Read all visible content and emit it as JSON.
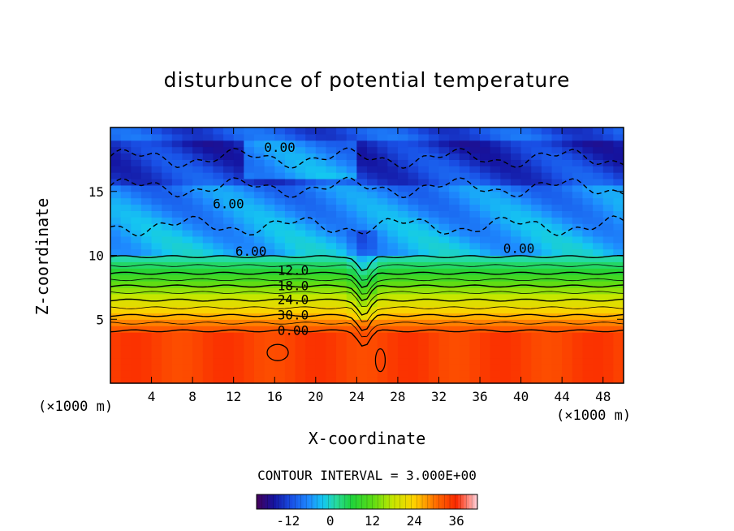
{
  "chart_data": {
    "type": "contour",
    "title": "disturbunce of potential temperature",
    "xlabel": "X-coordinate",
    "ylabel": "Z-coordinate",
    "x_unit": "(×1000 m)",
    "y_unit": "(×1000 m)",
    "xlim": [
      0,
      50
    ],
    "ylim": [
      0,
      20
    ],
    "x_ticks": [
      4,
      8,
      12,
      16,
      20,
      24,
      28,
      32,
      36,
      40,
      44,
      48
    ],
    "y_ticks": [
      5,
      10,
      15
    ],
    "contour_interval_text": "CONTOUR INTERVAL = 3.000E+00",
    "contour_levels_labeled": [
      "0.00",
      "6.00",
      "12.0",
      "18.0",
      "24.0",
      "30.0",
      "0.00",
      "0.00",
      "6.00"
    ],
    "negative_contours_dashed": true,
    "colorbar": {
      "min": -21,
      "max": 42,
      "tick_values": [
        -12,
        0,
        12,
        24,
        36
      ],
      "tick_labels": [
        "-12",
        "0",
        "12",
        "24",
        "36"
      ]
    }
  }
}
